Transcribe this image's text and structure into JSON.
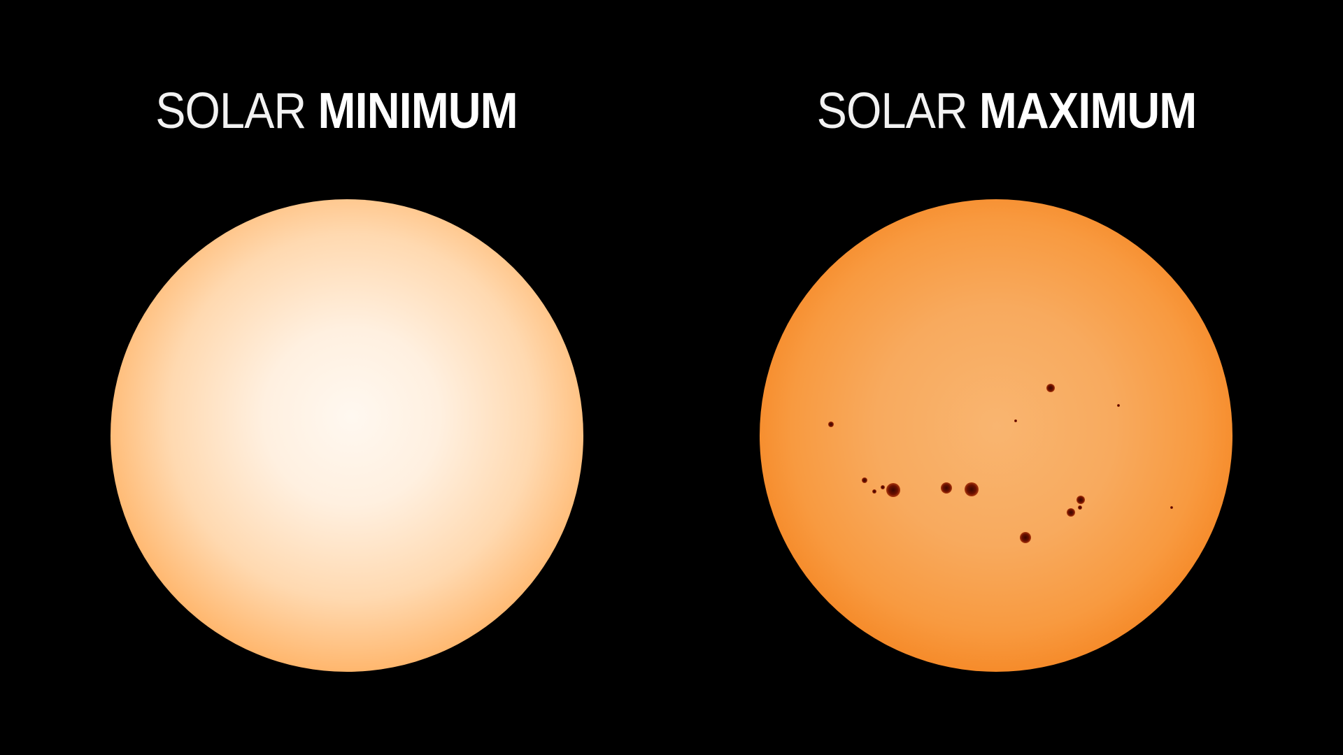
{
  "panels": [
    {
      "title_light": "SOLAR",
      "title_bold": "MINIMUM"
    },
    {
      "title_light": "SOLAR",
      "title_bold": "MAXIMUM"
    }
  ],
  "colors": {
    "background": "#000000",
    "title": "#ffffff",
    "sun_min_center": "#fff8f0",
    "sun_max_center": "#f9b570",
    "limb": "#8a0c00",
    "sunspot": "#3a0600"
  }
}
